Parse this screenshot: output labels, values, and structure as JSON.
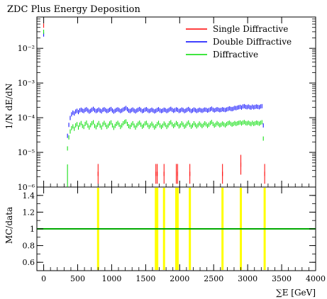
{
  "chart_data": [
    {
      "type": "scatter",
      "title": "ZDC Plus Energy Deposition",
      "ylabel": "1/N dE/dN",
      "yscale": "log",
      "xlim": [
        -100,
        4000
      ],
      "ylim": [
        1e-06,
        0.08
      ],
      "yticks": [
        {
          "value": 1e-06,
          "label": "10⁻⁶"
        },
        {
          "value": 1e-05,
          "label": "10⁻⁵"
        },
        {
          "value": 0.0001,
          "label": "10⁻⁴"
        },
        {
          "value": 0.001,
          "label": "10⁻³"
        },
        {
          "value": 0.01,
          "label": "10⁻²"
        }
      ],
      "legend": {
        "position": "top-right",
        "entries": [
          {
            "name": "Single Diffractive",
            "color": "#ff0000"
          },
          {
            "name": "Double Diffractive",
            "color": "#0000ff"
          },
          {
            "name": "Diffractive",
            "color": "#00dd00"
          }
        ]
      },
      "series": [
        {
          "name": "Single Diffractive",
          "color": "#ff0000",
          "points": [
            {
              "x": 0,
              "y": 0.045
            },
            {
              "x": 800,
              "y": 2.4e-06
            },
            {
              "x": 1650,
              "y": 2.4e-06
            },
            {
              "x": 1670,
              "y": 2.4e-06
            },
            {
              "x": 1770,
              "y": 2.4e-06
            },
            {
              "x": 1950,
              "y": 2.4e-06
            },
            {
              "x": 1970,
              "y": 2.4e-06
            },
            {
              "x": 2150,
              "y": 2.4e-06
            },
            {
              "x": 2630,
              "y": 2.4e-06
            },
            {
              "x": 2900,
              "y": 4.4e-06
            },
            {
              "x": 3250,
              "y": 2.4e-06
            }
          ]
        },
        {
          "name": "Double Diffractive",
          "color": "#0000ff",
          "x_start": 350,
          "x_step": 20,
          "points_y": [
            3e-05,
            6.2e-05,
            9.8e-05,
            0.000125,
            0.00014,
            0.000132,
            0.00015,
            0.000158,
            0.000145,
            0.000162,
            0.00017,
            0.00016,
            0.000155,
            0.000168,
            0.000175,
            0.000162,
            0.00015,
            0.000158,
            0.00017,
            0.00018,
            0.000165,
            0.000155,
            0.000162,
            0.000172,
            0.00016,
            0.000152,
            0.000168,
            0.000175,
            0.000165,
            0.000155,
            0.00016,
            0.00017,
            0.000178,
            0.000162,
            0.00015,
            0.000158,
            0.000168,
            0.000174,
            0.000165,
            0.000155,
            0.000162,
            0.000172,
            0.00018,
            0.00019,
            0.000175,
            0.00016,
            0.000155,
            0.000165,
            0.000172,
            0.00016,
            0.000152,
            0.000162,
            0.00017,
            0.000178,
            0.000166,
            0.000155,
            0.00016,
            0.00017,
            0.000176,
            0.000164,
            0.000155,
            0.000162,
            0.00017,
            0.00016,
            0.000152,
            0.000158,
            0.000168,
            0.000175,
            0.000162,
            0.000155,
            0.00016,
            0.00017,
            0.000165,
            0.000155,
            0.000162,
            0.000172,
            0.00018,
            0.000168,
            0.000158,
            0.000165,
            0.000174,
            0.000168,
            0.000156,
            0.000162,
            0.000172,
            0.000166,
            0.000155,
            0.00016,
            0.00017,
            0.000178,
            0.000165,
            0.000155,
            0.000162,
            0.000172,
            0.000165,
            0.000156,
            0.000162,
            0.00017,
            0.000164,
            0.000158,
            0.000165,
            0.000172,
            0.000168,
            0.00016,
            0.000166,
            0.000174,
            0.000182,
            0.00017,
            0.000162,
            0.000168,
            0.000176,
            0.00017,
            0.000164,
            0.000168,
            0.000175,
            0.00017,
            0.000166,
            0.000172,
            0.000178,
            0.000186,
            0.00018,
            0.000176,
            0.000182,
            0.000192,
            0.000188,
            0.000195,
            0.0002,
            0.000205,
            0.000196,
            0.00021,
            0.000215,
            0.000205,
            0.0002,
            0.00021,
            0.0002,
            0.000195,
            0.000208,
            0.000198,
            0.000205,
            0.00021,
            0.000205,
            0.0002,
            0.00021,
            0.000215,
            6e-05
          ],
          "extra_points": [
            {
              "x": 0,
              "y": 0.025
            }
          ]
        },
        {
          "name": "Diffractive",
          "color": "#00dd00",
          "x_start": 350,
          "x_step": 20,
          "points_y": [
            1.3e-05,
            2.7e-05,
            4e-05,
            5e-05,
            5.6e-05,
            4.8e-05,
            6e-05,
            6.5e-05,
            5.2e-05,
            6.3e-05,
            7e-05,
            5.8e-05,
            5.4e-05,
            6.6e-05,
            7.2e-05,
            5.9e-05,
            5.2e-05,
            6.1e-05,
            6.9e-05,
            7.4e-05,
            5.8e-05,
            5.3e-05,
            6.2e-05,
            7e-05,
            5.9e-05,
            5.2e-05,
            6.4e-05,
            7.1e-05,
            6.2e-05,
            5.4e-05,
            5.9e-05,
            6.8e-05,
            7.3e-05,
            6e-05,
            5.1e-05,
            5.8e-05,
            6.6e-05,
            7.1e-05,
            6.3e-05,
            5.4e-05,
            6e-05,
            6.9e-05,
            7.5e-05,
            7.8e-05,
            6.6e-05,
            5.7e-05,
            5.4e-05,
            6.2e-05,
            6.9e-05,
            5.9e-05,
            5.2e-05,
            6e-05,
            6.7e-05,
            7.2e-05,
            6.3e-05,
            5.5e-05,
            5.9e-05,
            6.8e-05,
            7.1e-05,
            6.1e-05,
            5.4e-05,
            6e-05,
            6.7e-05,
            5.9e-05,
            5.2e-05,
            5.7e-05,
            6.5e-05,
            7.1e-05,
            6e-05,
            5.4e-05,
            5.9e-05,
            6.8e-05,
            6.2e-05,
            5.4e-05,
            6e-05,
            6.9e-05,
            7.4e-05,
            6.4e-05,
            5.7e-05,
            6.2e-05,
            7e-05,
            6.5e-05,
            5.6e-05,
            6e-05,
            6.9e-05,
            6.3e-05,
            5.5e-05,
            5.9e-05,
            6.7e-05,
            7.3e-05,
            6.2e-05,
            5.5e-05,
            6e-05,
            6.9e-05,
            6.2e-05,
            5.6e-05,
            6.1e-05,
            6.8e-05,
            6.2e-05,
            5.7e-05,
            6.2e-05,
            6.9e-05,
            6.4e-05,
            5.8e-05,
            6.3e-05,
            7e-05,
            7.5e-05,
            6.6e-05,
            5.9e-05,
            6.3e-05,
            7e-05,
            6.5e-05,
            6e-05,
            6.3e-05,
            6.8e-05,
            6.4e-05,
            6e-05,
            6.5e-05,
            6.9e-05,
            7.2e-05,
            6.7e-05,
            6.3e-05,
            6.6e-05,
            7e-05,
            6.6e-05,
            6.9e-05,
            7.1e-05,
            7.3e-05,
            6.8e-05,
            7.2e-05,
            7.5e-05,
            7e-05,
            6.8e-05,
            7.2e-05,
            6.8e-05,
            6.5e-05,
            7.1e-05,
            6.6e-05,
            6.9e-05,
            7.2e-05,
            7e-05,
            6.7e-05,
            7.1e-05,
            7.4e-05,
            2.5e-05
          ],
          "extra_points": [
            {
              "x": 350,
              "y": 4.5e-06
            },
            {
              "x": 0,
              "y": 0.03
            }
          ]
        }
      ]
    },
    {
      "type": "scatter",
      "ylabel": "MC/data",
      "xlabel": "∑E [GeV]",
      "xlim": [
        -100,
        4000
      ],
      "ylim": [
        0.5,
        1.5
      ],
      "xticks": [
        0,
        500,
        1000,
        1500,
        2000,
        2500,
        3000,
        3500,
        4000
      ],
      "yticks": [
        0.6,
        0.8,
        1,
        1.2,
        1.4
      ],
      "reference_line": {
        "y": 1,
        "color": "#00aa00"
      },
      "band_color": "#ffff00",
      "bands_x": [
        800,
        1650,
        1670,
        1770,
        1950,
        1970,
        2150,
        2630,
        2900,
        3250
      ]
    }
  ]
}
